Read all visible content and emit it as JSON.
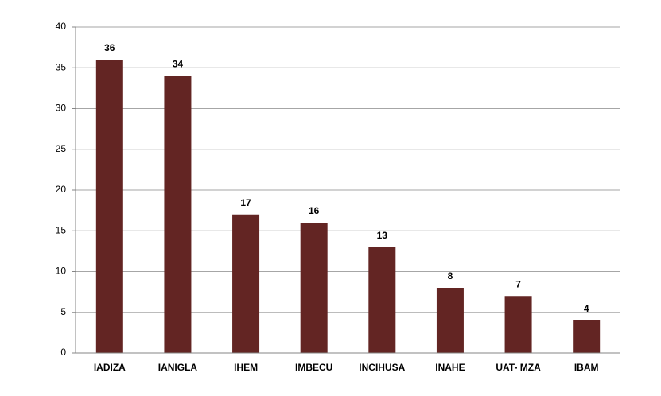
{
  "chart_data": {
    "type": "bar",
    "categories": [
      "IADIZA",
      "IANIGLA",
      "IHEM",
      "IMBECU",
      "INCIHUSA",
      "INAHE",
      "UAT- MZA",
      "IBAM"
    ],
    "values": [
      36,
      34,
      17,
      16,
      13,
      8,
      7,
      4
    ],
    "color": "#632523",
    "ylim": [
      0,
      40
    ],
    "yticks": [
      0,
      5,
      10,
      15,
      20,
      25,
      30,
      35,
      40
    ],
    "grid": true,
    "data_labels": true
  }
}
